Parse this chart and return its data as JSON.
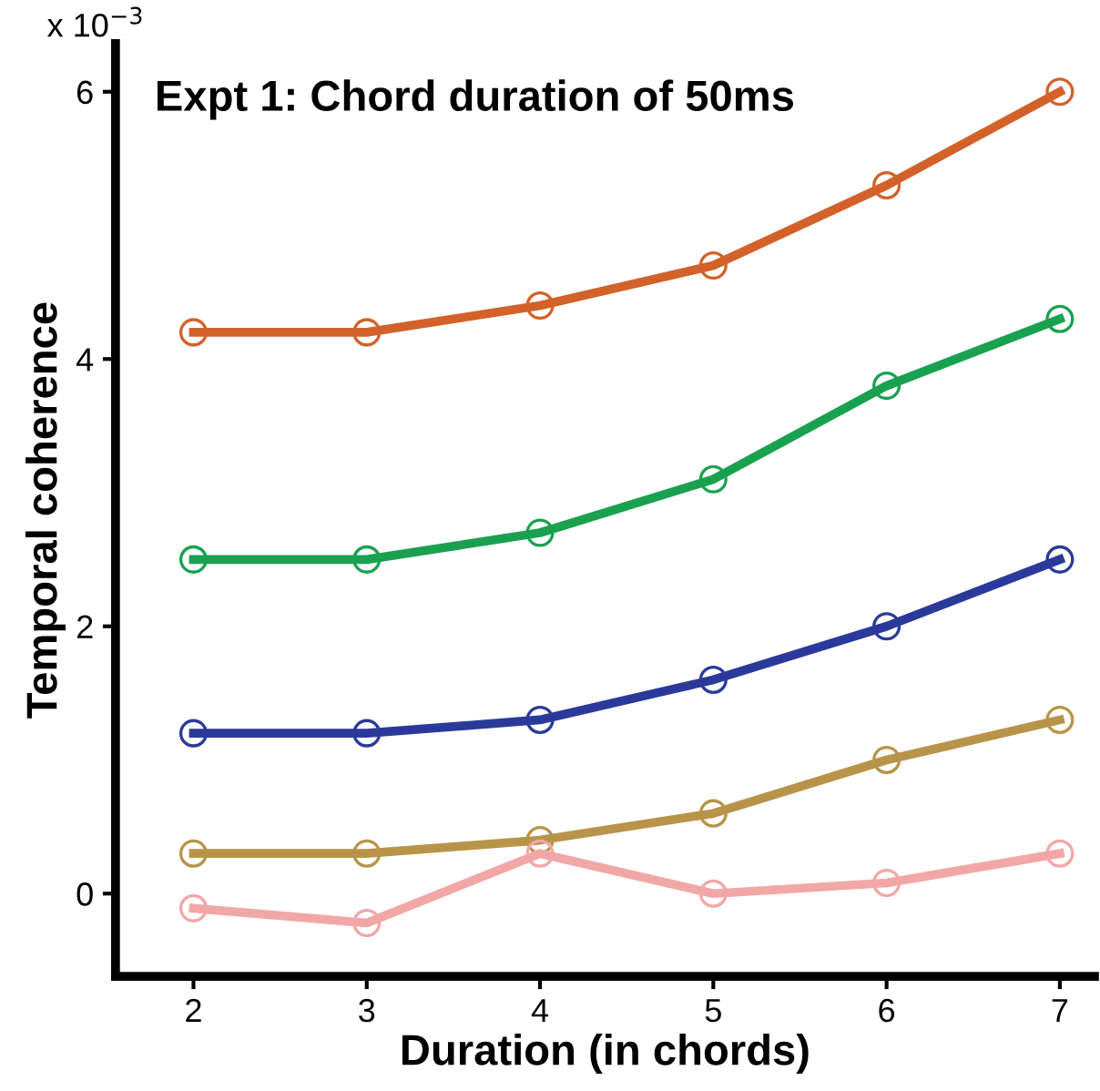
{
  "chart_data": {
    "type": "line",
    "title": "Expt 1: Chord duration of 50ms",
    "xlabel": "Duration (in chords)",
    "ylabel": "Temporal coherence",
    "annotations": [
      "x 10$^{−3}$"
    ],
    "x": [
      2,
      3,
      4,
      5,
      6,
      7
    ],
    "xlim": [
      1.55,
      7.2
    ],
    "xticks": [
      2,
      3,
      4,
      5,
      6,
      7
    ],
    "ylim": [
      -0.62,
      6.36
    ],
    "yticks": [
      0,
      2,
      4,
      6
    ],
    "marker": "circle",
    "line_style": "solid",
    "grid": false,
    "legend": false,
    "series": [
      {
        "color": "#d2622a",
        "values": [
          4.2,
          4.2,
          4.4,
          4.7,
          5.3,
          6.0
        ]
      },
      {
        "color": "#1aa150",
        "values": [
          2.5,
          2.5,
          2.7,
          3.1,
          3.8,
          4.3
        ]
      },
      {
        "color": "#2b3a9a",
        "values": [
          1.2,
          1.2,
          1.3,
          1.6,
          2.0,
          2.5
        ]
      },
      {
        "color": "#b8944a",
        "values": [
          0.3,
          0.3,
          0.4,
          0.6,
          1.0,
          1.3
        ]
      },
      {
        "color": "#f2a7a7",
        "values": [
          -0.11,
          -0.22,
          0.3,
          0.0,
          0.08,
          0.3
        ]
      }
    ]
  }
}
